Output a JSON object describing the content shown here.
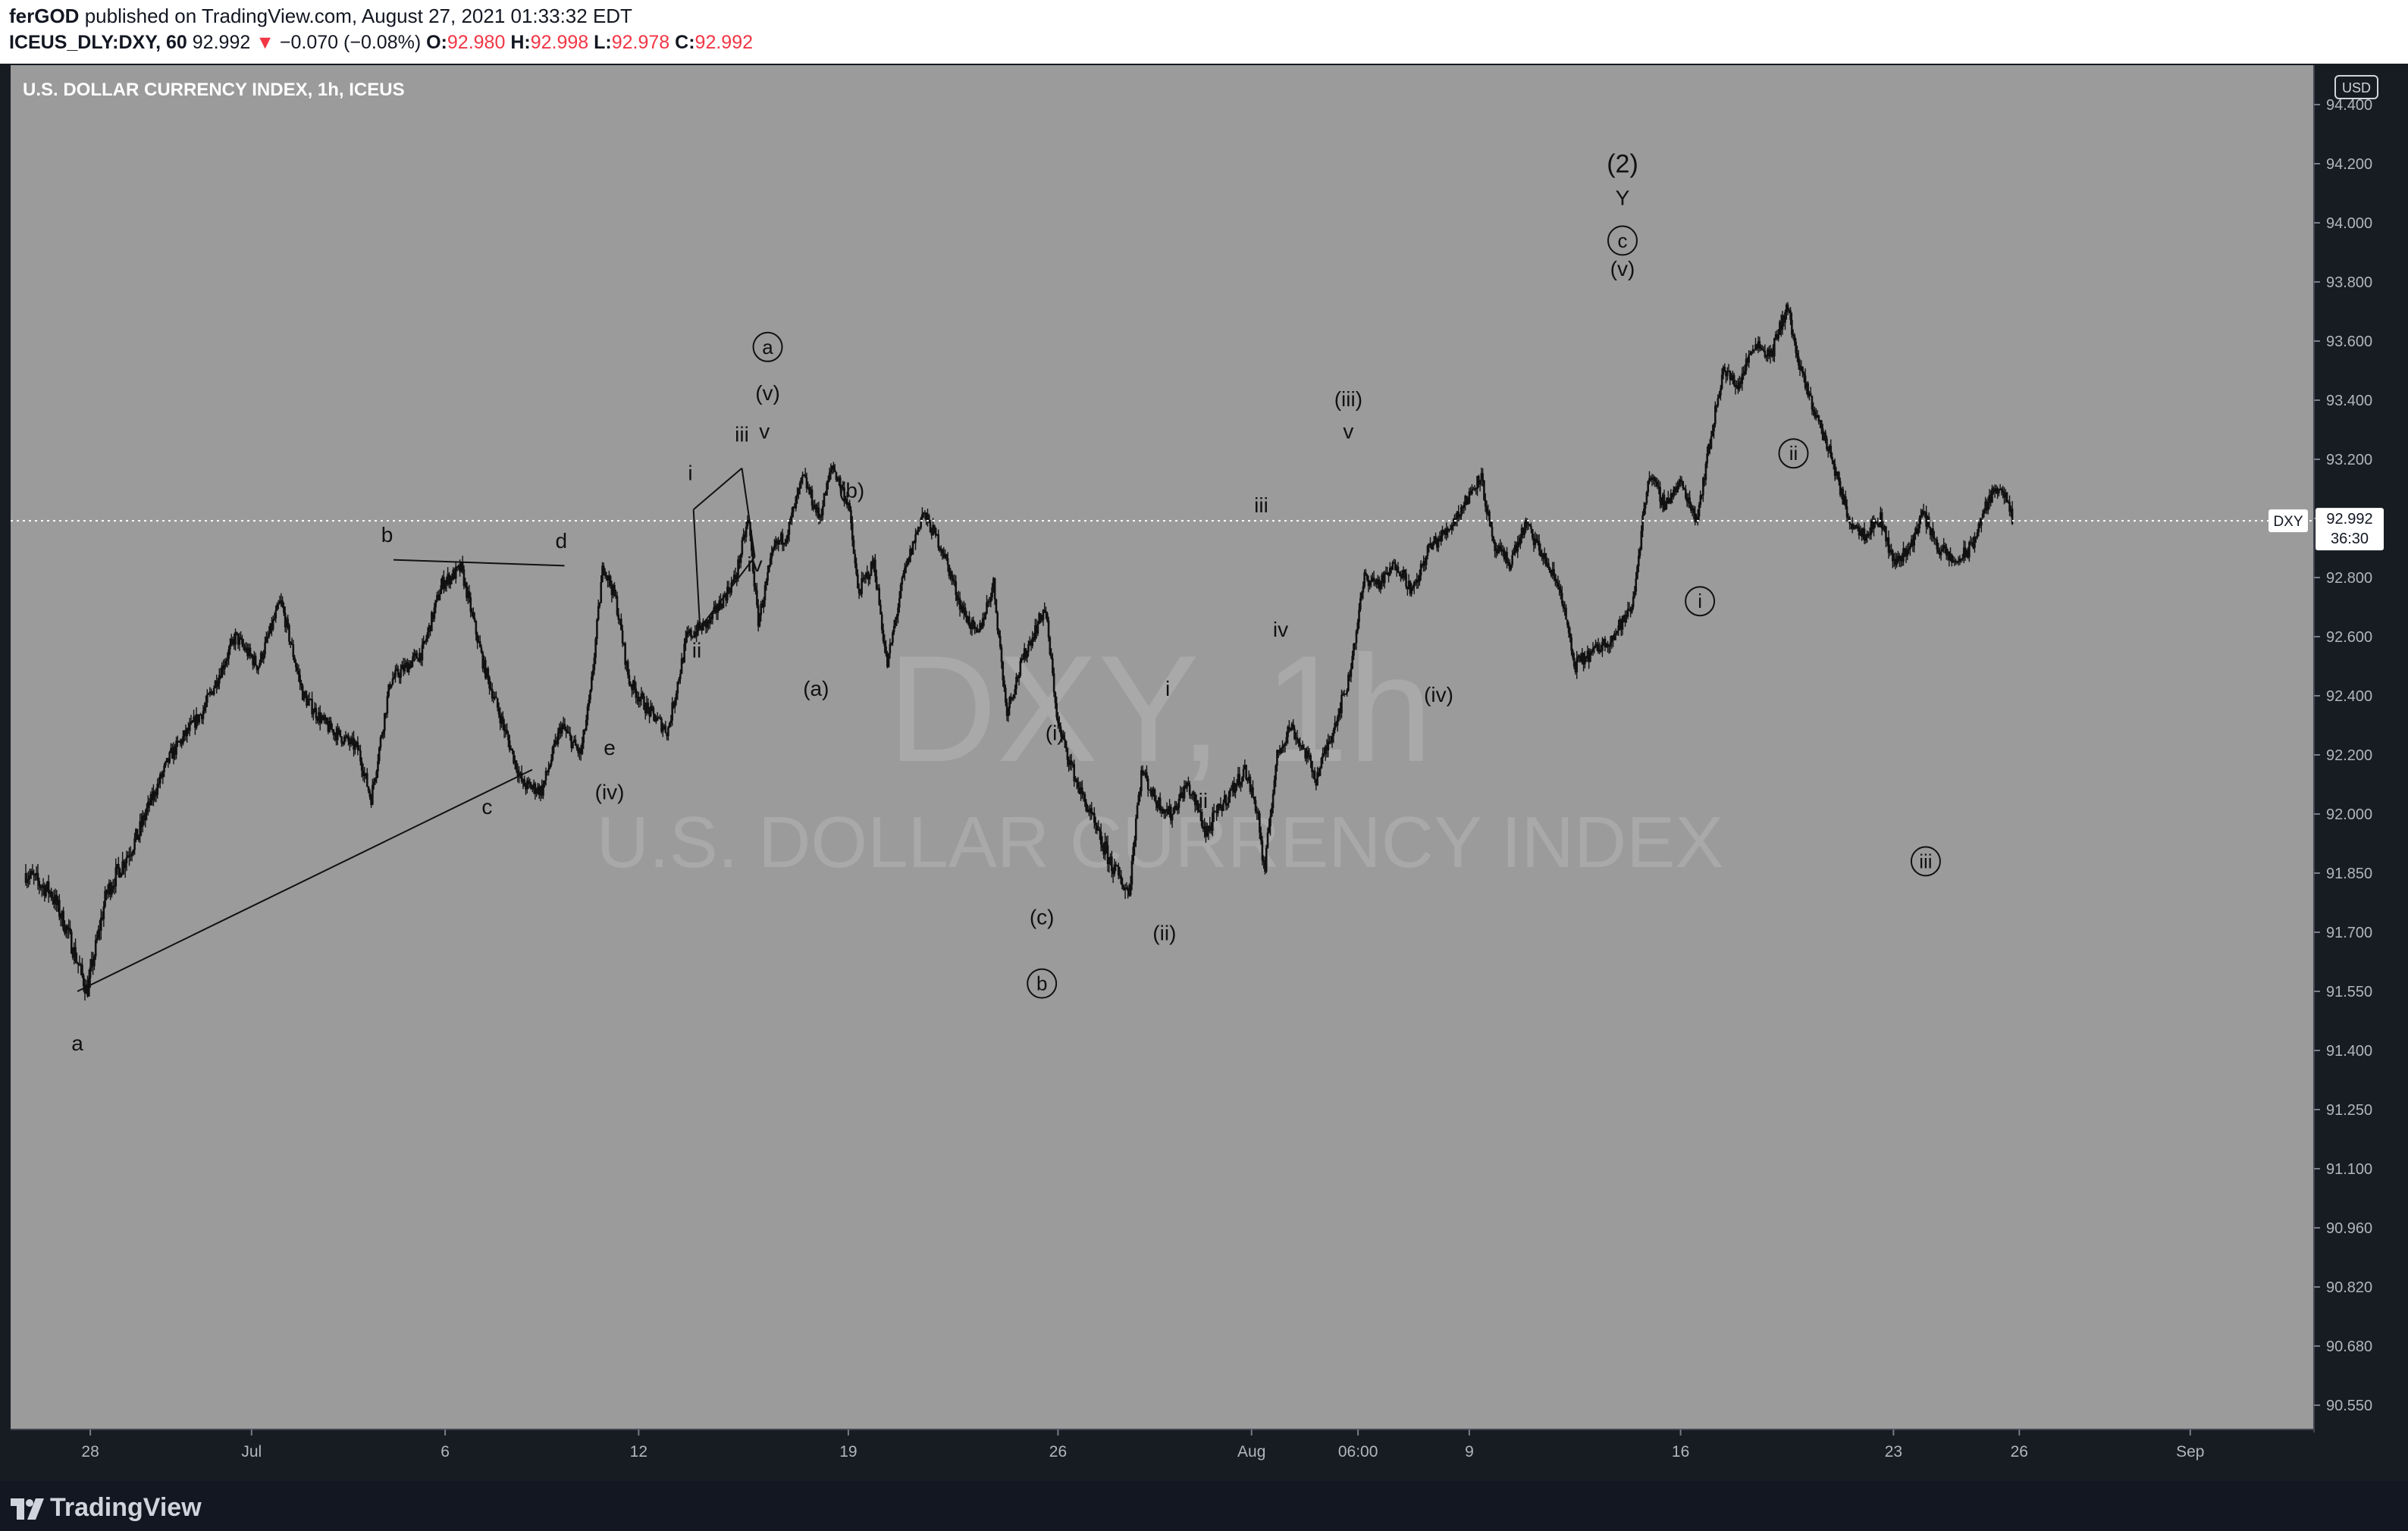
{
  "header": {
    "author": "ferGOD",
    "published_text": "published on TradingView.com, August 27, 2021 01:33:32 EDT",
    "symbol": "ICEUS_DLY:DXY, 60",
    "last": "92.992",
    "change_arrow": "▼",
    "change": "−0.070 (−0.08%)",
    "o_label": "O:",
    "o_value": "92.980",
    "h_label": "H:",
    "h_value": "92.998",
    "l_label": "L:",
    "l_value": "92.978",
    "c_label": "C:",
    "c_value": "92.992"
  },
  "chart_title": "U.S. DOLLAR CURRENCY INDEX, 1h, ICEUS",
  "watermark": {
    "symbol": "DXY, 1h",
    "name": "U.S. DOLLAR CURRENCY INDEX"
  },
  "currency_badge": "USD",
  "price_tag": {
    "symbol": "DXY",
    "price": "92.992",
    "countdown": "36:30"
  },
  "footer": {
    "brand": "TradingView"
  },
  "colors": {
    "plot_bg": "#9b9b9b",
    "candles": "#111111",
    "price_line": "#ffffff",
    "down_change": "#f23645",
    "axis_bg": "#171b22"
  },
  "chart_data": {
    "type": "candlestick",
    "title": "U.S. DOLLAR CURRENCY INDEX, 1h, ICEUS",
    "timeframe": "1h",
    "ylim": [
      90.45,
      94.45
    ],
    "y_ticks": [
      "94.400",
      "94.200",
      "94.000",
      "93.800",
      "93.600",
      "93.400",
      "93.200",
      "93.000",
      "92.800",
      "92.600",
      "92.400",
      "92.200",
      "92.000",
      "91.850",
      "91.700",
      "91.550",
      "91.400",
      "91.250",
      "91.100",
      "90.960",
      "90.820",
      "90.680",
      "90.550"
    ],
    "x_ticks": [
      "28",
      "Jul",
      "6",
      "12",
      "19",
      "26",
      "Aug",
      "06:00",
      "9",
      "16",
      "23",
      "26",
      "Sep"
    ],
    "x_range_days": [
      0,
      66
    ],
    "x_tick_days": [
      2,
      7,
      13,
      19,
      25.5,
      32,
      38,
      41.3,
      44.75,
      51.3,
      57.9,
      61.8,
      67.1
    ],
    "current_price": 92.992,
    "price_path": [
      [
        0,
        91.85
      ],
      [
        0.8,
        91.8
      ],
      [
        1.3,
        91.7
      ],
      [
        1.9,
        91.55
      ],
      [
        2.5,
        91.8
      ],
      [
        3.5,
        91.95
      ],
      [
        4.5,
        92.2
      ],
      [
        5.5,
        92.35
      ],
      [
        6.5,
        92.6
      ],
      [
        7.2,
        92.5
      ],
      [
        7.9,
        92.72
      ],
      [
        8.6,
        92.4
      ],
      [
        9.3,
        92.3
      ],
      [
        10.3,
        92.22
      ],
      [
        10.7,
        92.05
      ],
      [
        11.3,
        92.45
      ],
      [
        12.3,
        92.55
      ],
      [
        12.9,
        92.78
      ],
      [
        13.5,
        92.83
      ],
      [
        14.2,
        92.5
      ],
      [
        14.8,
        92.3
      ],
      [
        15.4,
        92.1
      ],
      [
        16.0,
        92.08
      ],
      [
        16.6,
        92.3
      ],
      [
        17.2,
        92.2
      ],
      [
        17.5,
        92.4
      ],
      [
        17.9,
        92.85
      ],
      [
        18.3,
        92.72
      ],
      [
        18.7,
        92.45
      ],
      [
        19.3,
        92.35
      ],
      [
        19.9,
        92.28
      ],
      [
        20.5,
        92.6
      ],
      [
        21.2,
        92.65
      ],
      [
        22.0,
        92.8
      ],
      [
        22.4,
        93.0
      ],
      [
        22.7,
        92.65
      ],
      [
        23.2,
        92.9
      ],
      [
        23.6,
        92.95
      ],
      [
        24.1,
        93.14
      ],
      [
        24.6,
        93.0
      ],
      [
        25.0,
        93.18
      ],
      [
        25.5,
        93.05
      ],
      [
        25.8,
        92.75
      ],
      [
        26.3,
        92.85
      ],
      [
        26.7,
        92.5
      ],
      [
        27.2,
        92.8
      ],
      [
        27.8,
        93.02
      ],
      [
        28.4,
        92.9
      ],
      [
        29.0,
        92.7
      ],
      [
        29.5,
        92.6
      ],
      [
        30.0,
        92.78
      ],
      [
        30.4,
        92.35
      ],
      [
        31.0,
        92.55
      ],
      [
        31.6,
        92.7
      ],
      [
        32.0,
        92.3
      ],
      [
        32.6,
        92.1
      ],
      [
        33.2,
        91.95
      ],
      [
        33.8,
        91.85
      ],
      [
        34.2,
        91.8
      ],
      [
        34.6,
        92.15
      ],
      [
        35.0,
        92.05
      ],
      [
        35.5,
        92.0
      ],
      [
        36.0,
        92.1
      ],
      [
        36.6,
        91.95
      ],
      [
        37.2,
        92.05
      ],
      [
        37.8,
        92.15
      ],
      [
        38.2,
        92.0
      ],
      [
        38.4,
        91.84
      ],
      [
        38.8,
        92.2
      ],
      [
        39.2,
        92.3
      ],
      [
        39.7,
        92.2
      ],
      [
        40.0,
        92.12
      ],
      [
        40.5,
        92.28
      ],
      [
        41.0,
        92.45
      ],
      [
        41.5,
        92.8
      ],
      [
        42.0,
        92.78
      ],
      [
        42.5,
        92.85
      ],
      [
        43.0,
        92.75
      ],
      [
        43.5,
        92.9
      ],
      [
        44.0,
        92.95
      ],
      [
        44.6,
        93.05
      ],
      [
        45.1,
        93.15
      ],
      [
        45.5,
        92.9
      ],
      [
        46.0,
        92.85
      ],
      [
        46.5,
        92.98
      ],
      [
        47.0,
        92.88
      ],
      [
        47.6,
        92.75
      ],
      [
        48.0,
        92.5
      ],
      [
        48.6,
        92.55
      ],
      [
        49.2,
        92.6
      ],
      [
        49.8,
        92.7
      ],
      [
        50.3,
        93.15
      ],
      [
        50.8,
        93.05
      ],
      [
        51.3,
        93.12
      ],
      [
        51.8,
        93.0
      ],
      [
        52.2,
        93.25
      ],
      [
        52.6,
        93.5
      ],
      [
        53.1,
        93.45
      ],
      [
        53.6,
        93.6
      ],
      [
        54.1,
        93.55
      ],
      [
        54.6,
        93.72
      ],
      [
        55.0,
        93.5
      ],
      [
        55.5,
        93.35
      ],
      [
        56.0,
        93.2
      ],
      [
        56.5,
        93.0
      ],
      [
        57.0,
        92.95
      ],
      [
        57.5,
        93.0
      ],
      [
        57.9,
        92.85
      ],
      [
        58.4,
        92.9
      ],
      [
        58.8,
        93.02
      ],
      [
        59.3,
        92.9
      ],
      [
        59.8,
        92.85
      ],
      [
        60.3,
        92.9
      ],
      [
        60.8,
        93.05
      ],
      [
        61.2,
        93.12
      ],
      [
        61.6,
        92.99
      ]
    ],
    "annotations": {
      "wave_labels": [
        {
          "text": "a",
          "x": 1.6,
          "y": 91.4
        },
        {
          "text": "b",
          "x": 11.2,
          "y": 92.92
        },
        {
          "text": "c",
          "x": 14.3,
          "y": 92.0
        },
        {
          "text": "d",
          "x": 16.6,
          "y": 92.9
        },
        {
          "text": "e",
          "x": 18.1,
          "y": 92.2
        },
        {
          "text": "(iv)",
          "x": 18.1,
          "y": 92.05
        },
        {
          "text": "i",
          "x": 20.6,
          "y": 93.13
        },
        {
          "text": "ii",
          "x": 20.8,
          "y": 92.53
        },
        {
          "text": "iii",
          "x": 22.2,
          "y": 93.26
        },
        {
          "text": "v",
          "x": 22.9,
          "y": 93.27
        },
        {
          "text": "iv",
          "x": 22.6,
          "y": 92.82
        },
        {
          "text": "(v)",
          "x": 23.0,
          "y": 93.4
        },
        {
          "text": "(b)",
          "x": 25.6,
          "y": 93.07
        },
        {
          "text": "(a)",
          "x": 24.5,
          "y": 92.4
        },
        {
          "text": "(i)",
          "x": 31.9,
          "y": 92.25
        },
        {
          "text": "(c)",
          "x": 31.5,
          "y": 91.72
        },
        {
          "text": "(ii)",
          "x": 35.3,
          "y": 91.68
        },
        {
          "text": "i",
          "x": 35.4,
          "y": 92.4
        },
        {
          "text": "ii",
          "x": 36.5,
          "y": 92.02
        },
        {
          "text": "iii",
          "x": 38.3,
          "y": 93.02
        },
        {
          "text": "iv",
          "x": 38.9,
          "y": 92.6
        },
        {
          "text": "(iii)",
          "x": 41.0,
          "y": 93.38
        },
        {
          "text": "v",
          "x": 41.0,
          "y": 93.27
        },
        {
          "text": "(iv)",
          "x": 43.8,
          "y": 92.38
        },
        {
          "text": "(v)",
          "x": 49.5,
          "y": 93.82
        },
        {
          "text": "Y",
          "x": 49.5,
          "y": 94.06
        },
        {
          "text": "(2)",
          "x": 49.5,
          "y": 94.17
        }
      ],
      "circled_labels": [
        {
          "text": "a",
          "x": 23.0,
          "y": 93.58
        },
        {
          "text": "b",
          "x": 31.5,
          "y": 91.57
        },
        {
          "text": "c",
          "x": 49.5,
          "y": 93.94
        },
        {
          "text": "i",
          "x": 51.9,
          "y": 92.72
        },
        {
          "text": "ii",
          "x": 54.8,
          "y": 93.22
        },
        {
          "text": "iii",
          "x": 58.9,
          "y": 91.88
        }
      ],
      "trendlines": [
        [
          [
            1.6,
            91.55
          ],
          [
            15.7,
            92.15
          ]
        ],
        [
          [
            11.4,
            92.86
          ],
          [
            16.7,
            92.84
          ]
        ],
        [
          [
            20.7,
            93.03
          ],
          [
            22.2,
            93.17
          ]
        ],
        [
          [
            22.2,
            93.17
          ],
          [
            22.6,
            92.87
          ]
        ],
        [
          [
            22.6,
            92.87
          ],
          [
            20.9,
            92.63
          ]
        ],
        [
          [
            20.9,
            92.63
          ],
          [
            20.7,
            93.03
          ]
        ]
      ]
    }
  }
}
